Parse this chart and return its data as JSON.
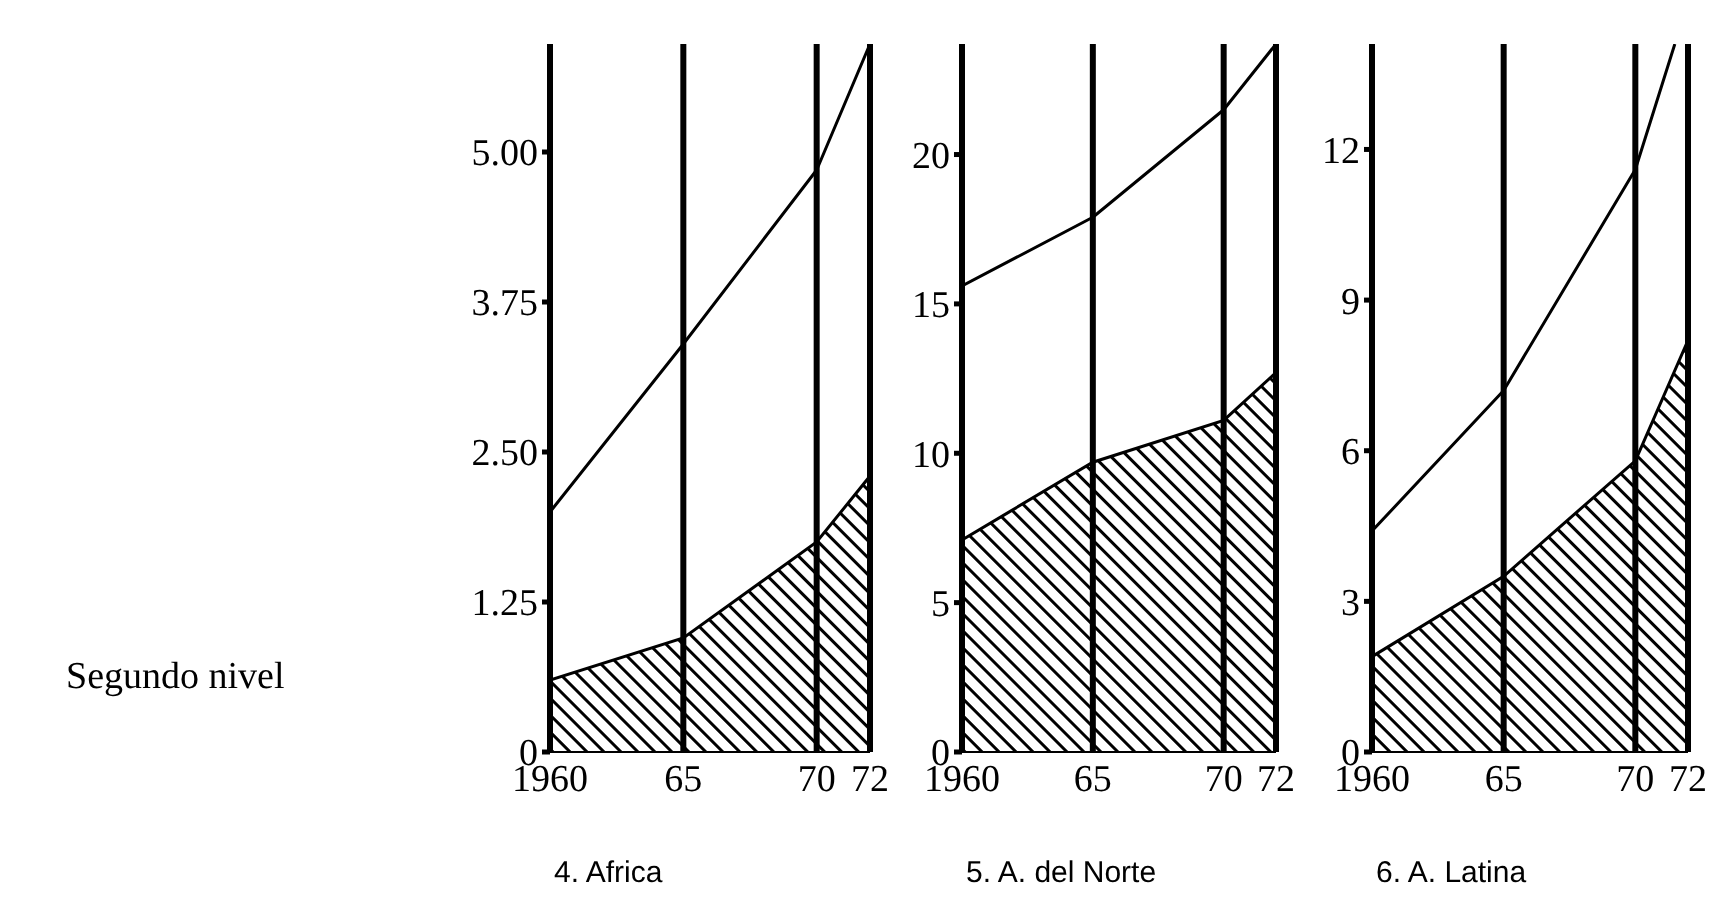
{
  "chart_data": [
    {
      "type": "area",
      "title": "4. Africa",
      "annotations": [
        "Segundo nivel"
      ],
      "x": [
        1960,
        1965,
        1970,
        1972
      ],
      "xlim": [
        1960,
        1972
      ],
      "xticks": [
        {
          "value": 1960,
          "label": "1960"
        },
        {
          "value": 1965,
          "label": "65"
        },
        {
          "value": 1970,
          "label": "70"
        },
        {
          "value": 1972,
          "label": "72"
        }
      ],
      "ylim": [
        0,
        5.9
      ],
      "yticks": [
        0,
        {
          "value": 1.25,
          "label": "1.25"
        },
        {
          "value": 2.5,
          "label": "2.50"
        },
        {
          "value": 3.75,
          "label": "3.75"
        },
        {
          "value": 5,
          "label": "5.00"
        }
      ],
      "grid": "x",
      "series": [
        {
          "type": "line",
          "color": "#000000",
          "values": [
            2.0,
            3.4,
            4.85,
            5.9
          ]
        },
        {
          "color": "#000000",
          "values": [
            0.6,
            0.95,
            1.75,
            2.3
          ]
        }
      ]
    },
    {
      "type": "area",
      "title": "5. A. del Norte",
      "x": [
        1960,
        1965,
        1970,
        1972
      ],
      "xlim": [
        1960,
        1972
      ],
      "xticks": [
        {
          "value": 1960,
          "label": "1960"
        },
        {
          "value": 1965,
          "label": "65"
        },
        {
          "value": 1970,
          "label": "70"
        },
        {
          "value": 1972,
          "label": "72"
        }
      ],
      "ylim": [
        0,
        23.7
      ],
      "yticks": [
        0,
        5,
        10,
        15,
        20
      ],
      "grid": "x",
      "series": [
        {
          "type": "line",
          "color": "#000000",
          "values": [
            15.6,
            17.9,
            21.5,
            23.7
          ]
        },
        {
          "color": "#000000",
          "values": [
            7.1,
            9.7,
            11.1,
            12.7
          ]
        }
      ]
    },
    {
      "type": "area",
      "title": "6. A. Latina",
      "x": [
        1960,
        1965,
        1970,
        1972
      ],
      "xlim": [
        1960,
        1972
      ],
      "xticks": [
        {
          "value": 1960,
          "label": "1960"
        },
        {
          "value": 1965,
          "label": "65"
        },
        {
          "value": 1970,
          "label": "70"
        },
        {
          "value": 1972,
          "label": "72"
        }
      ],
      "ylim": [
        0,
        14.1
      ],
      "yticks": [
        0,
        3,
        6,
        9,
        12
      ],
      "grid": "x",
      "series": [
        {
          "type": "line",
          "color": "#000000",
          "x": [
            1960,
            1965,
            1970,
            1971.5
          ],
          "values": [
            4.4,
            7.2,
            11.6,
            14.1
          ]
        },
        {
          "color": "#000000",
          "values": [
            1.9,
            3.5,
            5.8,
            8.2
          ]
        }
      ]
    }
  ]
}
